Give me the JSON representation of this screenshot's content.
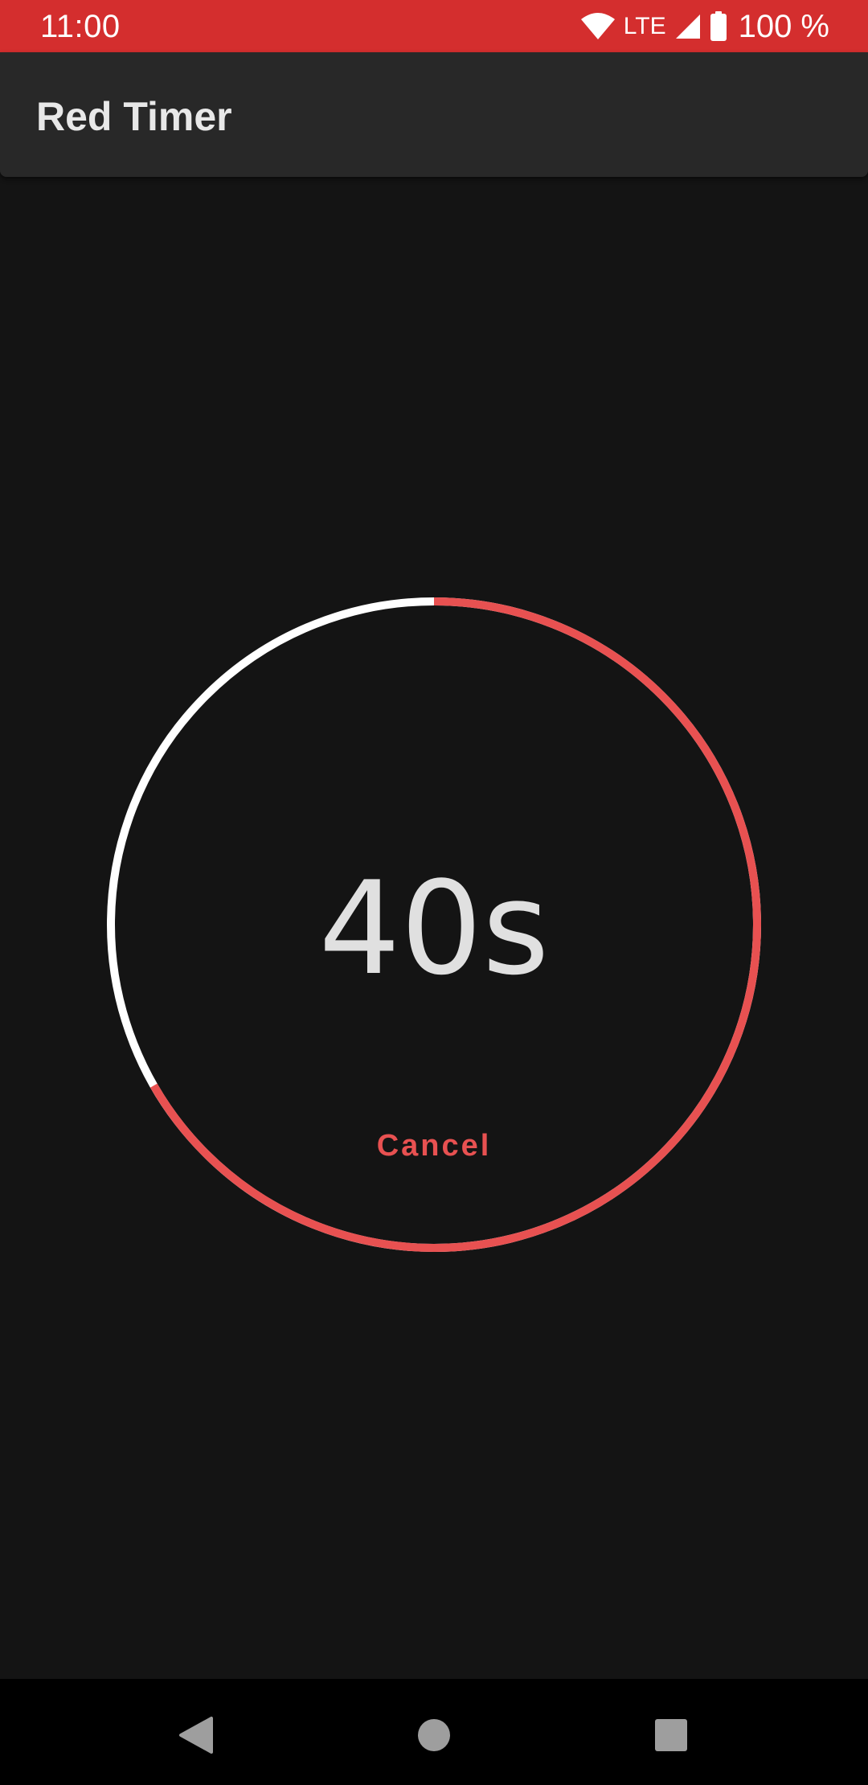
{
  "status_bar": {
    "time": "11:00",
    "network": "LTE",
    "battery": "100 %",
    "icons": [
      "wifi-icon",
      "signal-icon",
      "battery-icon"
    ]
  },
  "app_bar": {
    "title": "Red Timer"
  },
  "timer": {
    "value": "40s",
    "remaining_fraction": 0.667,
    "cancel_label": "Cancel"
  },
  "nav_bar": {
    "icons": [
      "back-icon",
      "home-icon",
      "recents-icon"
    ]
  },
  "colors": {
    "status_bar": "#d42e2e",
    "app_bar": "#282828",
    "background": "#141414",
    "progress": "#e85151",
    "track": "#ffffff",
    "accent": "#e85151"
  }
}
